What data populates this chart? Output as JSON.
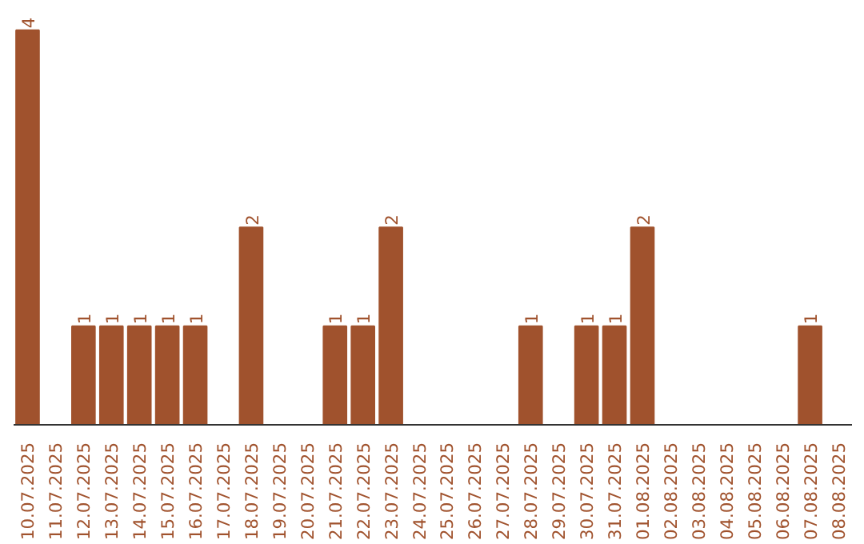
{
  "chart_data": {
    "type": "bar",
    "categories": [
      "10.07.2025",
      "11.07.2025",
      "12.07.2025",
      "13.07.2025",
      "14.07.2025",
      "15.07.2025",
      "16.07.2025",
      "17.07.2025",
      "18.07.2025",
      "19.07.2025",
      "20.07.2025",
      "21.07.2025",
      "22.07.2025",
      "23.07.2025",
      "24.07.2025",
      "25.07.2025",
      "26.07.2025",
      "27.07.2025",
      "28.07.2025",
      "29.07.2025",
      "30.07.2025",
      "31.07.2025",
      "01.08.2025",
      "02.08.2025",
      "03.08.2025",
      "04.08.2025",
      "05.08.2025",
      "06.08.2025",
      "07.08.2025",
      "08.08.2025"
    ],
    "values": [
      4,
      0,
      1,
      1,
      1,
      1,
      1,
      0,
      2,
      0,
      0,
      1,
      1,
      2,
      0,
      0,
      0,
      0,
      1,
      0,
      1,
      1,
      2,
      0,
      0,
      0,
      0,
      0,
      1,
      0
    ],
    "value_labels": [
      "4",
      null,
      "1",
      "1",
      "1",
      "1",
      "1",
      null,
      "2",
      null,
      null,
      "1",
      "1",
      "2",
      null,
      null,
      null,
      null,
      "1",
      null,
      "1",
      "1",
      "2",
      null,
      null,
      null,
      null,
      null,
      "1",
      null
    ],
    "color": "#a0522d",
    "grid": false
  }
}
